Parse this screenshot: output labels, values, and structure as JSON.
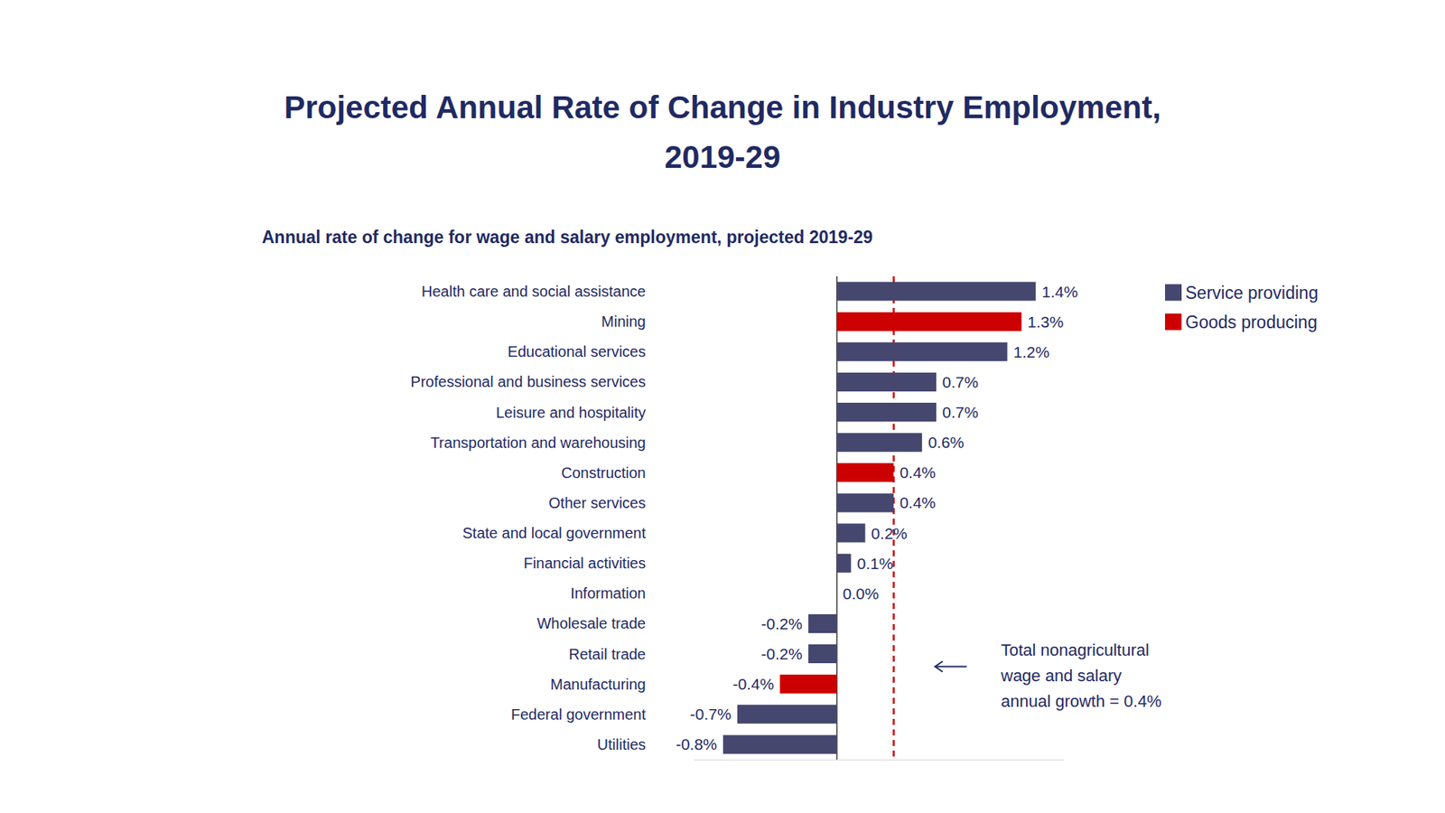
{
  "chart_data": {
    "type": "bar",
    "title": "Projected Annual Rate of Change in Industry Employment,\n2019-29",
    "subtitle": "Annual rate of change for wage and salary employment, projected 2019-29",
    "orientation": "horizontal",
    "categories": [
      "Health care and social assistance",
      "Mining",
      "Educational services",
      "Professional and business services",
      "Leisure and hospitality",
      "Transportation and warehousing",
      "Construction",
      "Other services",
      "State and local government",
      "Financial activities",
      "Information",
      "Wholesale trade",
      "Retail trade",
      "Manufacturing",
      "Federal government",
      "Utilities"
    ],
    "series": [
      {
        "name": "Service providing",
        "color": "#45476f",
        "values": [
          1.4,
          null,
          1.2,
          0.7,
          0.7,
          0.6,
          null,
          0.4,
          0.2,
          0.1,
          0.0,
          -0.2,
          -0.2,
          null,
          -0.7,
          -0.8
        ],
        "value_labels": [
          "1.4%",
          null,
          "1.2%",
          "0.7%",
          "0.7%",
          "0.6%",
          null,
          "0.4%",
          "0.2%",
          "0.1%",
          "0.0%",
          "-0.2%",
          "-0.2%",
          null,
          "-0.7%",
          "-0.8%"
        ]
      },
      {
        "name": "Goods producing",
        "color": "#cc0000",
        "values": [
          null,
          1.3,
          null,
          null,
          null,
          null,
          0.4,
          null,
          null,
          null,
          null,
          null,
          null,
          -0.4,
          null,
          null
        ],
        "value_labels": [
          null,
          "1.3%",
          null,
          null,
          null,
          null,
          "0.4%",
          null,
          null,
          null,
          null,
          null,
          null,
          "-0.4%",
          null,
          null
        ]
      }
    ],
    "xlim": [
      -1.0,
      1.6
    ],
    "tick_labels": false,
    "grid": false,
    "legend": "top right",
    "data_labels": true,
    "reference_line": {
      "value": 0.4,
      "color": "#cc0000",
      "line_style": "dashed",
      "label": [
        "Total nonagricultural",
        "wage and salary",
        "annual growth = 0.4%"
      ]
    }
  }
}
